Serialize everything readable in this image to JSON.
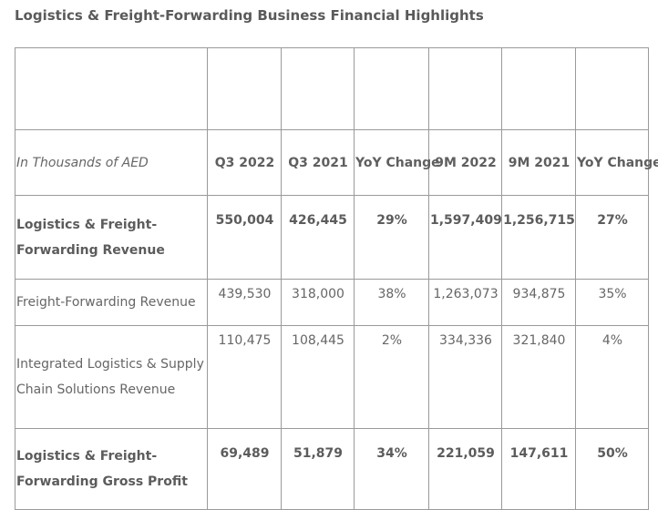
{
  "title": "Logistics & Freight-Forwarding Business Financial Highlights",
  "table": {
    "header": {
      "label": "In Thousands of AED",
      "columns": [
        "Q3 2022",
        "Q3 2021",
        "YoY Change",
        "9M 2022",
        "9M 2021",
        "YoY Change"
      ]
    },
    "rows": [
      {
        "label": "Logistics & Freight-Forwarding Revenue",
        "bold": true,
        "values": [
          "550,004",
          "426,445",
          "29%",
          "1,597,409",
          "1,256,715",
          "27%"
        ]
      },
      {
        "label": "Freight-Forwarding Revenue",
        "bold": false,
        "values": [
          "439,530",
          "318,000",
          "38%",
          "1,263,073",
          "934,875",
          "35%"
        ]
      },
      {
        "label": "Integrated Logistics & Supply Chain Solutions Revenue",
        "bold": false,
        "values": [
          "110,475",
          "108,445",
          "2%",
          "334,336",
          "321,840",
          "4%"
        ]
      },
      {
        "label": "Logistics & Freight-Forwarding Gross Profit",
        "bold": true,
        "values": [
          "69,489",
          "51,879",
          "34%",
          "221,059",
          "147,611",
          "50%"
        ]
      }
    ]
  }
}
